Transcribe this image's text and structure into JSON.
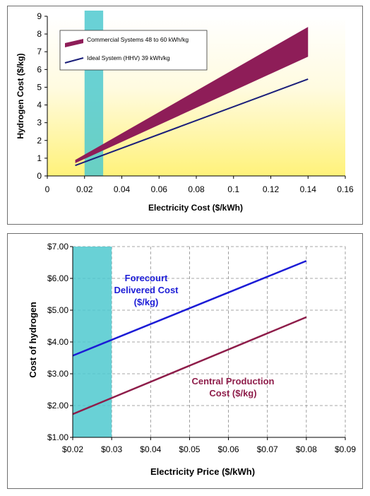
{
  "chart_data": [
    {
      "type": "line",
      "xlabel": "Electricity Cost ($/kWh)",
      "ylabel": "Hydrogen Cost ($/kg)",
      "xlim": [
        0,
        0.16
      ],
      "ylim": [
        0,
        9
      ],
      "x_ticks": [
        "0",
        "0.02",
        "0.04",
        "0.06",
        "0.08",
        "0.1",
        "0.12",
        "0.14",
        "0.16"
      ],
      "y_ticks": [
        "0",
        "1",
        "2",
        "3",
        "4",
        "5",
        "6",
        "7",
        "8",
        "9"
      ],
      "grid": false,
      "legend_position": "top-left",
      "highlight_band": {
        "x": [
          0.02,
          0.03
        ],
        "color": "#4fc9cf"
      },
      "background": {
        "top": "#ffffff",
        "bottom": "#fff27a"
      },
      "series": [
        {
          "name": "Commercial Systems 48 to 60 kWh/kg",
          "kind": "band",
          "color": "#8e1d58",
          "x": [
            0.015,
            0.14
          ],
          "y_low": [
            0.72,
            6.72
          ],
          "y_high": [
            0.9,
            8.4
          ]
        },
        {
          "name": "Ideal System (HHV) 39 kWh/kg",
          "kind": "line",
          "color": "#1b1f7a",
          "x": [
            0.015,
            0.14
          ],
          "y": [
            0.59,
            5.46
          ]
        }
      ]
    },
    {
      "type": "line",
      "xlabel": "Electricity Price ($/kWh)",
      "ylabel": "Cost of hydrogen",
      "xlim": [
        0.02,
        0.09
      ],
      "ylim": [
        1,
        7
      ],
      "x_ticks": [
        "$0.02",
        "$0.03",
        "$0.04",
        "$0.05",
        "$0.06",
        "$0.07",
        "$0.08",
        "$0.09"
      ],
      "y_ticks": [
        "$1.00",
        "$2.00",
        "$3.00",
        "$4.00",
        "$5.00",
        "$6.00",
        "$7.00"
      ],
      "grid": true,
      "highlight_band": {
        "x": [
          0.02,
          0.03
        ],
        "color": "#4fc9cf"
      },
      "annotations": [
        {
          "lines": [
            "Forecourt",
            "Delivered Cost",
            "($/kg)"
          ],
          "color": "#1c1cd6"
        },
        {
          "lines": [
            "Central Production",
            "Cost ($/kg)"
          ],
          "color": "#8e1d4a"
        }
      ],
      "series": [
        {
          "name": "Forecourt Delivered Cost ($/kg)",
          "color": "#1c1cd6",
          "x": [
            0.02,
            0.08
          ],
          "y": [
            3.57,
            6.55
          ]
        },
        {
          "name": "Central Production Cost ($/kg)",
          "color": "#8e1d4a",
          "x": [
            0.02,
            0.08
          ],
          "y": [
            1.73,
            4.78
          ]
        }
      ]
    }
  ]
}
